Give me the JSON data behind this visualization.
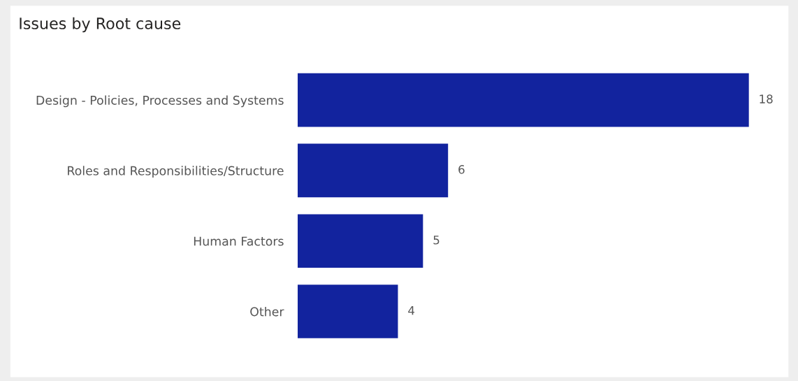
{
  "chart_data": {
    "type": "bar",
    "orientation": "horizontal",
    "title": "Issues by Root cause",
    "categories": [
      "Design - Policies, Processes and Systems",
      "Roles and Responsibilities/Structure",
      "Human Factors",
      "Other"
    ],
    "values": [
      18,
      6,
      5,
      4
    ],
    "color": "#12239e",
    "data_labels": true,
    "grid": false,
    "legend": false,
    "tick_labels": "y"
  }
}
